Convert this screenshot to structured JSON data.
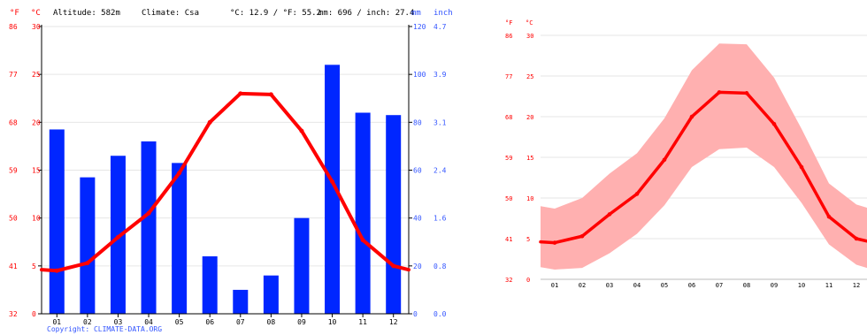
{
  "header": {
    "temp_unit_f": "°F",
    "temp_unit_c": "°C",
    "altitude": "Altitude: 582m",
    "climate": "Climate: Csa",
    "avg_temp": "°C: 12.9 / °F: 55.2",
    "precip_total": "mm: 696 / inch: 27.4",
    "precip_unit_mm": "mm",
    "precip_unit_inch": "inch",
    "copyright": "Copyright: CLIMATE-DATA.ORG"
  },
  "colors": {
    "temperature": "#ff0000",
    "precipitation": "#0026ff",
    "precip_axis": "#3355ff",
    "temp_band": "#ffb0b0",
    "grid": "#e6e6e6"
  },
  "chart_data": [
    {
      "type": "bar",
      "title": "",
      "categories": [
        "01",
        "02",
        "03",
        "04",
        "05",
        "06",
        "07",
        "08",
        "09",
        "10",
        "11",
        "12"
      ],
      "series": [
        {
          "name": "",
          "axis": "right",
          "unit": "mm",
          "type": "bar",
          "values": [
            77,
            57,
            66,
            72,
            63,
            24,
            10,
            16,
            40,
            104,
            84,
            83
          ]
        },
        {
          "name": "",
          "axis": "left",
          "unit": "°C",
          "type": "line",
          "values": [
            4.5,
            5.3,
            8.0,
            10.5,
            14.7,
            20.0,
            23.0,
            22.9,
            19.1,
            13.8,
            7.7,
            5.0
          ]
        }
      ],
      "y_left_celsius": {
        "ticks": [
          "0",
          "5",
          "10",
          "15",
          "20",
          "25",
          "30"
        ],
        "ylim": [
          0,
          30
        ]
      },
      "y_left_fahrenheit": {
        "ticks": [
          "32",
          "41",
          "50",
          "59",
          "68",
          "77",
          "86"
        ]
      },
      "y_right_mm": {
        "ticks": [
          "0",
          "20",
          "40",
          "60",
          "80",
          "100",
          "120"
        ],
        "ylim": [
          0,
          120
        ]
      },
      "y_right_inch": {
        "ticks": [
          "0.0",
          "0.8",
          "1.6",
          "2.4",
          "3.1",
          "3.9",
          "4.7"
        ]
      },
      "grid": true
    },
    {
      "type": "area",
      "title": "",
      "categories": [
        "01",
        "02",
        "03",
        "04",
        "05",
        "06",
        "07",
        "08",
        "09",
        "10",
        "11",
        "12"
      ],
      "series": [
        {
          "name": "",
          "type": "line",
          "values": [
            4.5,
            5.3,
            8.0,
            10.5,
            14.7,
            20.0,
            23.0,
            22.9,
            19.1,
            13.8,
            7.7,
            5.0
          ]
        },
        {
          "name": "",
          "type": "band_max",
          "values": [
            8.7,
            10.0,
            13.0,
            15.5,
            19.8,
            25.7,
            29.0,
            28.9,
            24.8,
            18.5,
            11.8,
            9.2
          ]
        },
        {
          "name": "",
          "type": "band_min",
          "values": [
            1.2,
            1.4,
            3.2,
            5.6,
            9.1,
            13.8,
            16.0,
            16.2,
            13.8,
            9.4,
            4.3,
            1.8
          ]
        }
      ],
      "y_left_celsius": {
        "ticks": [
          "0",
          "5",
          "10",
          "15",
          "20",
          "25",
          "30"
        ],
        "ylim": [
          0,
          30
        ]
      },
      "y_left_fahrenheit": {
        "ticks": [
          "32",
          "41",
          "50",
          "59",
          "68",
          "77",
          "86"
        ]
      },
      "grid": true
    }
  ]
}
